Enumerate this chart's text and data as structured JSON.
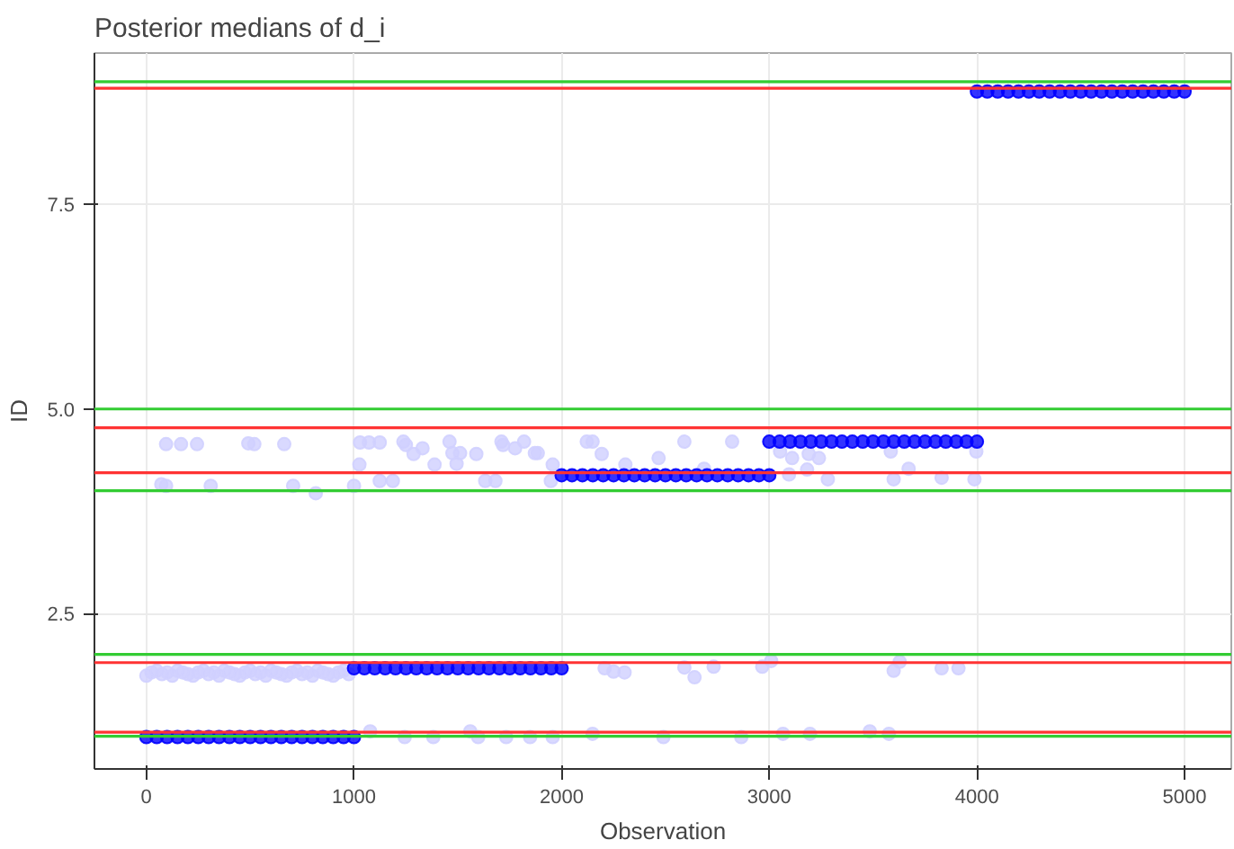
{
  "chart_data": {
    "type": "scatter",
    "title": "Posterior medians of d_i",
    "xlabel": "Observation",
    "ylabel": "ID",
    "xlim": [
      -250,
      5225
    ],
    "ylim": [
      0.6,
      9.35
    ],
    "xticks": [
      0,
      1000,
      2000,
      3000,
      4000,
      5000
    ],
    "yticks": [
      {
        "value": 2.5,
        "label": "2.5"
      },
      {
        "value": 5,
        "label": "5.0"
      },
      {
        "value": 7.5,
        "label": "7.5"
      }
    ],
    "grid": true,
    "marker": "circle",
    "series": [
      {
        "color": "#d0d0ff",
        "x": [
          0,
          25,
          50,
          75,
          100,
          125,
          150,
          175,
          200,
          225,
          250,
          275,
          300,
          325,
          350,
          375,
          400,
          425,
          450,
          475,
          500,
          525,
          550,
          575,
          600,
          625,
          650,
          675,
          700,
          725,
          750,
          775,
          800,
          825,
          850,
          875,
          900,
          925,
          950,
          975,
          95,
          167,
          244,
          491,
          520,
          664,
          72,
          95,
          310,
          707,
          816,
          1000,
          1029,
          1072,
          1124,
          1026,
          1124,
          1187,
          1238,
          1250,
          1287,
          1330,
          1388,
          1460,
          1474,
          1511,
          1494,
          1589,
          1632,
          1681,
          1710,
          1718,
          1776,
          1819,
          1871,
          1885,
          1957,
          1948,
          2121,
          2149,
          2193,
          2307,
          2591,
          2467,
          2686,
          2821,
          3052,
          3110,
          3190,
          3239,
          3095,
          3182,
          3282,
          3585,
          3599,
          3671,
          3830,
          3988,
          3997,
          2207,
          2250,
          2303,
          2591,
          2640,
          2732,
          2966,
          3009,
          3599,
          3628,
          3830,
          3911,
          1078,
          1244,
          1382,
          1560,
          1598,
          1733,
          1848,
          1957,
          2149,
          2490,
          2865,
          3066,
          3196,
          3484,
          3576
        ],
        "values": [
          1.74,
          1.78,
          1.8,
          1.76,
          1.78,
          1.74,
          1.8,
          1.78,
          1.76,
          1.74,
          1.78,
          1.8,
          1.76,
          1.78,
          1.74,
          1.8,
          1.78,
          1.76,
          1.74,
          1.78,
          1.8,
          1.76,
          1.78,
          1.74,
          1.8,
          1.78,
          1.76,
          1.74,
          1.78,
          1.8,
          1.76,
          1.78,
          1.74,
          1.8,
          1.78,
          1.76,
          1.74,
          1.78,
          1.8,
          1.76,
          4.57,
          4.57,
          4.57,
          4.58,
          4.57,
          4.57,
          4.08,
          4.06,
          4.06,
          4.06,
          3.97,
          4.06,
          4.59,
          4.59,
          4.59,
          4.32,
          4.12,
          4.12,
          4.6,
          4.56,
          4.45,
          4.52,
          4.32,
          4.6,
          4.46,
          4.46,
          4.33,
          4.45,
          4.12,
          4.12,
          4.6,
          4.56,
          4.52,
          4.6,
          4.46,
          4.46,
          4.32,
          4.12,
          4.6,
          4.6,
          4.45,
          4.32,
          4.6,
          4.4,
          4.27,
          4.6,
          4.48,
          4.4,
          4.45,
          4.4,
          4.2,
          4.26,
          4.14,
          4.48,
          4.14,
          4.27,
          4.16,
          4.14,
          4.48,
          1.83,
          1.79,
          1.78,
          1.84,
          1.72,
          1.85,
          1.85,
          1.92,
          1.8,
          1.91,
          1.83,
          1.83,
          1.06,
          0.99,
          0.99,
          1.06,
          0.99,
          0.99,
          0.99,
          0.99,
          1.03,
          0.99,
          0.99,
          1.03,
          1.03,
          1.06,
          1.03
        ]
      },
      {
        "color": "#0000ff",
        "x": [
          0,
          50,
          100,
          150,
          200,
          250,
          300,
          350,
          400,
          450,
          500,
          550,
          600,
          650,
          700,
          750,
          800,
          850,
          900,
          950,
          1000,
          1000,
          1050,
          1100,
          1150,
          1200,
          1250,
          1300,
          1350,
          1400,
          1450,
          1500,
          1550,
          1600,
          1650,
          1700,
          1750,
          1800,
          1850,
          1900,
          1950,
          2000,
          2000,
          2050,
          2100,
          2150,
          2200,
          2250,
          2300,
          2350,
          2400,
          2450,
          2500,
          2550,
          2600,
          2650,
          2700,
          2750,
          2800,
          2850,
          2900,
          2950,
          3000,
          3000,
          3050,
          3100,
          3150,
          3200,
          3250,
          3300,
          3350,
          3400,
          3450,
          3500,
          3550,
          3600,
          3650,
          3700,
          3750,
          3800,
          3850,
          3900,
          3950,
          4000,
          4000,
          4050,
          4100,
          4150,
          4200,
          4250,
          4300,
          4350,
          4400,
          4450,
          4500,
          4550,
          4600,
          4650,
          4700,
          4750,
          4800,
          4850,
          4900,
          4950,
          5000
        ],
        "values": [
          0.99,
          0.99,
          0.99,
          0.99,
          0.99,
          0.99,
          0.99,
          0.99,
          0.99,
          0.99,
          0.99,
          0.99,
          0.99,
          0.99,
          0.99,
          0.99,
          0.99,
          0.99,
          0.99,
          0.99,
          0.99,
          1.83,
          1.83,
          1.83,
          1.83,
          1.83,
          1.83,
          1.83,
          1.83,
          1.83,
          1.83,
          1.83,
          1.83,
          1.83,
          1.83,
          1.83,
          1.83,
          1.83,
          1.83,
          1.83,
          1.83,
          1.83,
          4.19,
          4.19,
          4.19,
          4.19,
          4.19,
          4.19,
          4.19,
          4.19,
          4.19,
          4.19,
          4.19,
          4.19,
          4.19,
          4.19,
          4.19,
          4.19,
          4.19,
          4.19,
          4.19,
          4.19,
          4.19,
          4.6,
          4.6,
          4.6,
          4.6,
          4.6,
          4.6,
          4.6,
          4.6,
          4.6,
          4.6,
          4.6,
          4.6,
          4.6,
          4.6,
          4.6,
          4.6,
          4.6,
          4.6,
          4.6,
          4.6,
          4.6,
          8.88,
          8.88,
          8.88,
          8.88,
          8.88,
          8.88,
          8.88,
          8.88,
          8.88,
          8.88,
          8.88,
          8.88,
          8.88,
          8.88,
          8.88,
          8.88,
          8.88,
          8.88,
          8.88,
          8.88,
          8.88
        ]
      }
    ],
    "ref_lines": [
      {
        "axis": "y",
        "value": 1,
        "color": "#33cc33"
      },
      {
        "axis": "y",
        "value": 2,
        "color": "#33cc33"
      },
      {
        "axis": "y",
        "value": 4,
        "color": "#33cc33"
      },
      {
        "axis": "y",
        "value": 5,
        "color": "#33cc33"
      },
      {
        "axis": "y",
        "value": 9,
        "color": "#33cc33"
      },
      {
        "axis": "y",
        "value": 1.05,
        "color": "#ff3333"
      },
      {
        "axis": "y",
        "value": 1.9,
        "color": "#ff3333"
      },
      {
        "axis": "y",
        "value": 4.22,
        "color": "#ff3333"
      },
      {
        "axis": "y",
        "value": 4.77,
        "color": "#ff3333"
      },
      {
        "axis": "y",
        "value": 8.92,
        "color": "#ff3333"
      }
    ]
  }
}
